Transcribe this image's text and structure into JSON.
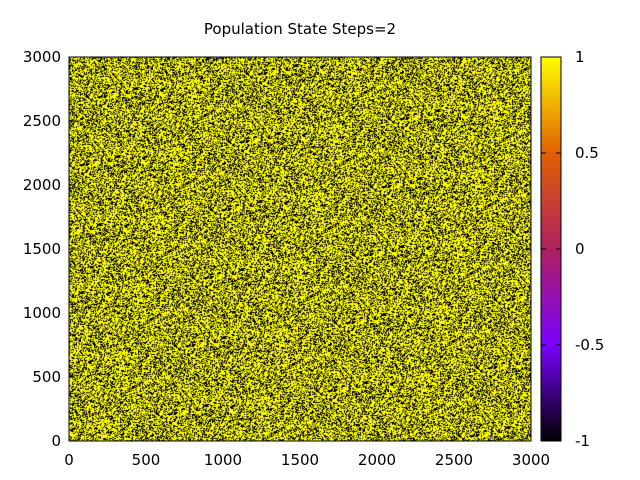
{
  "chart_data": {
    "type": "heatmap",
    "title": "Population State Steps=2",
    "xlabel": "",
    "ylabel": "",
    "xlim": [
      0,
      3000
    ],
    "ylim": [
      0,
      3000
    ],
    "x_ticks": [
      0,
      500,
      1000,
      1500,
      2000,
      2500,
      3000
    ],
    "y_ticks": [
      0,
      500,
      1000,
      1500,
      2000,
      2500,
      3000
    ],
    "grid_size": 3000,
    "values_observed": [
      -1,
      1
    ],
    "approx_fraction_value_1": 0.6,
    "colorbar": {
      "range": [
        -1,
        1
      ],
      "ticks": [
        -1,
        -0.5,
        0,
        0.5,
        1
      ],
      "tick_labels": [
        "-1",
        "-0.5",
        "0",
        "0.5",
        "1"
      ],
      "palette": "gnuplot-pm3d (black-blue/purple-red-orange-yellow)",
      "colors": {
        "low": "#000000",
        "mid_low": "#7a00ff",
        "mid": "#b02060",
        "mid_high": "#e06000",
        "high": "#ffff00"
      }
    },
    "grid": false,
    "legend": "none"
  }
}
